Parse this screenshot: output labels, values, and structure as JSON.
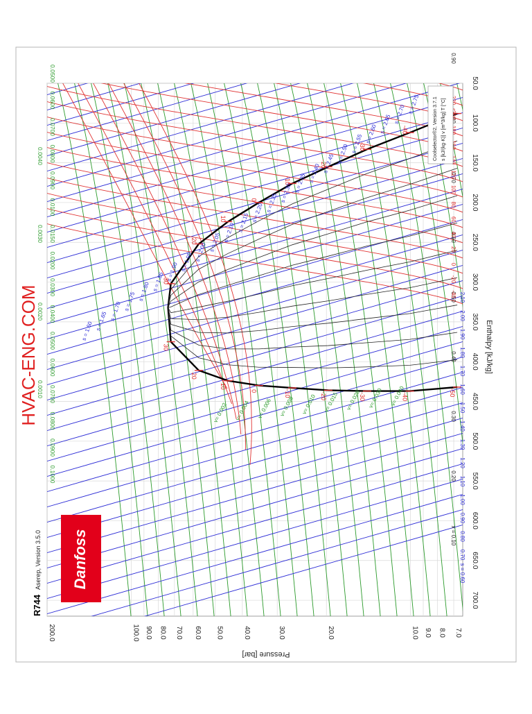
{
  "page": {
    "watermark": "HVAC-ENG.COM",
    "refrigerant": "R744",
    "software": "Aserep, Version 3.5.0",
    "logo_text": "Danfoss",
    "legend_title": "Coolselector®2, Version 3.7.1",
    "legend_units": "s [kJ/(kg·K)]   v [m^3/kg]   T [°C]"
  },
  "colors": {
    "frame": "#b4b4b4",
    "grid": "#d9d9d9",
    "entropy": "#2a2ad6",
    "isotherm": "#e03030",
    "volume": "#2a9a2a",
    "saturation": "#000000",
    "watermark": "#e02020",
    "logo_bg": "#e2001a"
  },
  "chart_data": {
    "type": "line",
    "title": "",
    "xlabel": "Enthalpy [kJ/kg]",
    "ylabel": "Pressure [bar]",
    "xlim": [
      50,
      720
    ],
    "ylim": [
      6.5,
      200
    ],
    "yscale": "log",
    "grid": true,
    "x_ticks": [
      "50.0",
      "100.0",
      "150.0",
      "200.0",
      "250.0",
      "300.0",
      "350.0",
      "400.0",
      "450.0",
      "500.0",
      "550.0",
      "600.0",
      "650.0",
      "700.0"
    ],
    "y_ticks": [
      {
        "value": 200,
        "label": "200.0"
      },
      {
        "value": 100,
        "label": "100.0"
      },
      {
        "value": 90,
        "label": "90.0"
      },
      {
        "value": 80,
        "label": "80.0"
      },
      {
        "value": 70,
        "label": "70.0"
      },
      {
        "value": 60,
        "label": "60.0"
      },
      {
        "value": 50,
        "label": "50.0"
      },
      {
        "value": 40,
        "label": "40.0"
      },
      {
        "value": 30,
        "label": "30.0"
      },
      {
        "value": 20,
        "label": "20.0"
      },
      {
        "value": 10,
        "label": "10.0"
      },
      {
        "value": 9,
        "label": "9.0"
      },
      {
        "value": 8,
        "label": "8.0"
      },
      {
        "value": 7,
        "label": "7.0"
      }
    ],
    "x_quality_labels": [
      "x = 0.10",
      "0.20",
      "0.30",
      "0.40",
      "0.50",
      "0.60",
      "0.70",
      "0.80",
      "0.90"
    ],
    "bottom_entropy_labels": [
      "s = 0.60",
      "0.70",
      "0.80",
      "0.90",
      "1.00",
      "1.10",
      "1.20",
      "1.30",
      "1.40",
      "1.50",
      "1.60",
      "1.70",
      "1.80",
      "1.90",
      "2.00",
      "2.10"
    ],
    "top_temperature_labels": [
      "-40",
      "-20",
      "0",
      "20",
      "40",
      "60",
      "80",
      "100",
      "120",
      "140",
      "160",
      "180",
      "200",
      "220"
    ],
    "top_volume_labels": [
      "0.0500",
      "0.0600",
      "0.0700",
      "0.0800",
      "0.0900",
      "0.0100",
      "0.0150",
      "0.0200",
      "0.0300",
      "0.0400",
      "0.0500",
      "0.0600",
      "0.0700",
      "0.0800",
      "0.0900",
      "0.1000"
    ],
    "left_volume_labels": [
      "0.0040",
      "0.0030",
      "0.0020",
      "0.0010"
    ],
    "entropy_line_labels": [
      "s = 1.60",
      "s = 1.65",
      "s = 1.70",
      "s = 1.75",
      "s = 1.80",
      "s = 1.85",
      "s = 1.90",
      "s = 1.95",
      "s = 2.00",
      "s = 2.05",
      "s = 2.10",
      "s = 2.15",
      "s = 2.20",
      "s = 2.25",
      "s = 2.30",
      "s = 2.35",
      "s = 2.40",
      "s = 2.45",
      "s = 2.50",
      "s = 2.55",
      "s = 2.60",
      "s = 2.65",
      "s = 2.70",
      "s = 2.75"
    ],
    "inner_volume_labels": [
      "v= 0.002",
      "v= 0.004",
      "v= 0.006",
      "v= 0.008",
      "v= 0.010",
      "v= 0.015",
      "v= 0.020",
      "v= 0.030",
      "v= 0.040"
    ],
    "saturation_temperatures": [
      {
        "t": "-50",
        "p": 6.8,
        "h_liq": 88,
        "h_vap": 432
      },
      {
        "t": "-40",
        "p": 10.05,
        "h_liq": 112,
        "h_vap": 437
      },
      {
        "t": "-30",
        "p": 14.3,
        "h_liq": 133,
        "h_vap": 437
      },
      {
        "t": "-20",
        "p": 19.7,
        "h_liq": 155,
        "h_vap": 436
      },
      {
        "t": "-10",
        "p": 26.5,
        "h_liq": 176,
        "h_vap": 433
      },
      {
        "t": "0",
        "p": 34.9,
        "h_liq": 200,
        "h_vap": 430
      },
      {
        "t": "10",
        "p": 45.0,
        "h_liq": 224,
        "h_vap": 424
      },
      {
        "t": "20",
        "p": 57.3,
        "h_liq": 252,
        "h_vap": 411
      },
      {
        "t": "30",
        "p": 72.1,
        "h_liq": 302,
        "h_vap": 375
      }
    ],
    "critical_point": {
      "h": 332,
      "p": 73.8
    },
    "dome_labels": [
      "-50",
      "-40",
      "-30",
      "-20",
      "-10",
      "0",
      "10",
      "20",
      "30",
      "30",
      "20",
      "10",
      "0",
      "-10",
      "-20",
      "-30",
      "-40",
      "-50"
    ]
  }
}
